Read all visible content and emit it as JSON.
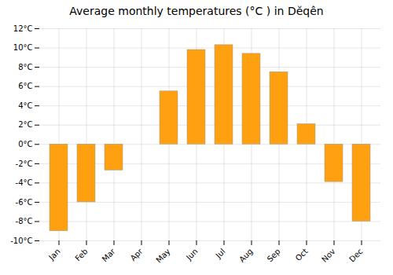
{
  "chart_data": {
    "type": "bar",
    "title": "Average monthly temperatures (°C ) in Dĕqên",
    "categories": [
      "Jan",
      "Feb",
      "Mar",
      "Apr",
      "May",
      "Jun",
      "Jul",
      "Aug",
      "Sep",
      "Oct",
      "Nov",
      "Dec"
    ],
    "values": [
      -9.0,
      -6.0,
      -2.7,
      0.0,
      5.5,
      9.8,
      10.3,
      9.4,
      7.5,
      2.1,
      -3.9,
      -8.0
    ],
    "color": "#FFA010",
    "ylim": [
      -10,
      12
    ],
    "yticks": [
      {
        "value": -10,
        "label": "-10°C"
      },
      {
        "value": -8,
        "label": "-8°C"
      },
      {
        "value": -6,
        "label": "-6°C"
      },
      {
        "value": -4,
        "label": "-4°C"
      },
      {
        "value": -2,
        "label": "-2°C"
      },
      {
        "value": 0,
        "label": "0°C"
      },
      {
        "value": 2,
        "label": "2°C"
      },
      {
        "value": 4,
        "label": "4°C"
      },
      {
        "value": 6,
        "label": "6°C"
      },
      {
        "value": 8,
        "label": "8°C"
      },
      {
        "value": 10,
        "label": "10°C"
      },
      {
        "value": 12,
        "label": "12°C"
      }
    ],
    "grid": true
  }
}
